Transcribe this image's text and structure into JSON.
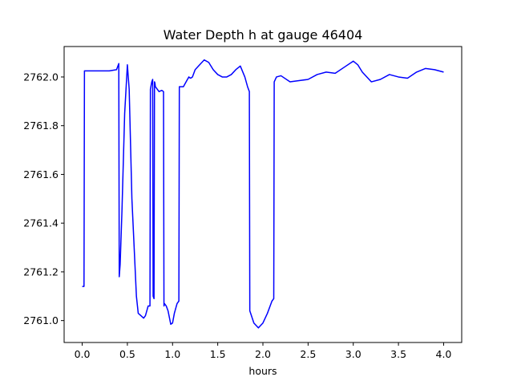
{
  "chart_data": {
    "type": "line",
    "title": "Water Depth h at gauge 46404",
    "xlabel": "hours",
    "ylabel": "",
    "xlim": [
      -0.2,
      4.2
    ],
    "ylim": [
      2760.91,
      2762.125
    ],
    "xticks": [
      0.0,
      0.5,
      1.0,
      1.5,
      2.0,
      2.5,
      3.0,
      3.5,
      4.0
    ],
    "xtick_labels": [
      "0.0",
      "0.5",
      "1.0",
      "1.5",
      "2.0",
      "2.5",
      "3.0",
      "3.5",
      "4.0"
    ],
    "yticks": [
      2761.0,
      2761.2,
      2761.4,
      2761.6,
      2761.8,
      2762.0
    ],
    "ytick_labels": [
      "2761.0",
      "2761.2",
      "2761.4",
      "2761.6",
      "2761.8",
      "2762.0"
    ],
    "grid": false,
    "series": [
      {
        "color": "#0000ff",
        "x": [
          0.0,
          0.02,
          0.025,
          0.03,
          0.1,
          0.2,
          0.3,
          0.38,
          0.405,
          0.41,
          0.42,
          0.44,
          0.47,
          0.5,
          0.52,
          0.55,
          0.6,
          0.62,
          0.65,
          0.68,
          0.7,
          0.73,
          0.75,
          0.755,
          0.77,
          0.78,
          0.785,
          0.795,
          0.8,
          0.805,
          0.81,
          0.85,
          0.88,
          0.9,
          0.905,
          0.91,
          0.93,
          0.95,
          0.98,
          1.0,
          1.02,
          1.05,
          1.07,
          1.075,
          1.09,
          1.12,
          1.15,
          1.18,
          1.2,
          1.22,
          1.25,
          1.3,
          1.35,
          1.4,
          1.45,
          1.5,
          1.55,
          1.6,
          1.65,
          1.7,
          1.75,
          1.8,
          1.83,
          1.85,
          1.855,
          1.9,
          1.95,
          2.0,
          2.05,
          2.1,
          2.12,
          2.125,
          2.15,
          2.2,
          2.3,
          2.4,
          2.5,
          2.6,
          2.7,
          2.8,
          2.9,
          3.0,
          3.05,
          3.1,
          3.2,
          3.3,
          3.4,
          3.5,
          3.6,
          3.7,
          3.8,
          3.9,
          4.0
        ],
        "y": [
          2761.14,
          2761.14,
          2762.025,
          2762.025,
          2762.025,
          2762.025,
          2762.025,
          2762.03,
          2762.055,
          2761.18,
          2761.23,
          2761.45,
          2761.85,
          2762.05,
          2761.95,
          2761.5,
          2761.1,
          2761.03,
          2761.02,
          2761.01,
          2761.02,
          2761.06,
          2761.06,
          2761.95,
          2761.98,
          2761.99,
          2761.1,
          2761.09,
          2761.98,
          2761.975,
          2761.96,
          2761.94,
          2761.945,
          2761.94,
          2761.06,
          2761.07,
          2761.06,
          2761.04,
          2760.985,
          2760.99,
          2761.03,
          2761.07,
          2761.08,
          2761.96,
          2761.96,
          2761.96,
          2761.98,
          2762.0,
          2761.995,
          2762.0,
          2762.03,
          2762.05,
          2762.07,
          2762.06,
          2762.03,
          2762.01,
          2762.0,
          2762.0,
          2762.01,
          2762.03,
          2762.045,
          2762.0,
          2761.96,
          2761.94,
          2761.04,
          2760.99,
          2760.97,
          2760.99,
          2761.03,
          2761.08,
          2761.09,
          2761.98,
          2762.0,
          2762.005,
          2761.98,
          2761.985,
          2761.99,
          2762.01,
          2762.02,
          2762.015,
          2762.04,
          2762.065,
          2762.05,
          2762.02,
          2761.98,
          2761.99,
          2762.01,
          2762.0,
          2761.995,
          2762.02,
          2762.035,
          2762.03,
          2762.02
        ]
      }
    ]
  }
}
